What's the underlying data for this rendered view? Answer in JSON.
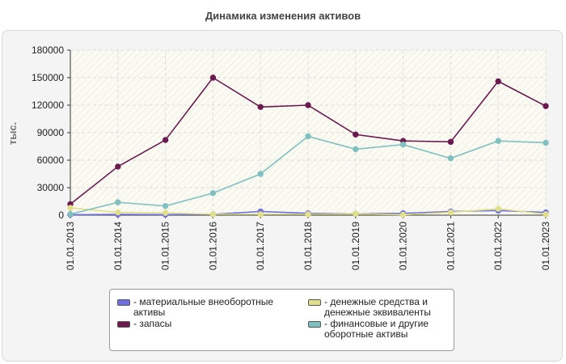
{
  "chart_data": {
    "type": "line",
    "title": "Динамика изменения активов",
    "ylabel": "тыс.",
    "xlabel": "",
    "ylim": [
      0,
      180000
    ],
    "yticks": [
      0,
      30000,
      60000,
      90000,
      120000,
      150000,
      180000
    ],
    "categories": [
      "01.01.2013",
      "01.01.2014",
      "01.01.2015",
      "01.01.2016",
      "01.01.2017",
      "01.01.2018",
      "01.01.2019",
      "01.01.2020",
      "01.01.2021",
      "01.01.2022",
      "01.01.2023"
    ],
    "grid": true,
    "legend_position": "bottom",
    "series": [
      {
        "name": "- материальные внеоборотные активы",
        "color": "#7070e0",
        "values": [
          500,
          800,
          600,
          1000,
          4000,
          2000,
          1500,
          2000,
          4000,
          5000,
          3000
        ]
      },
      {
        "name": "- запасы",
        "color": "#6b1a4f",
        "values": [
          12000,
          53000,
          82000,
          150000,
          118000,
          120000,
          88000,
          81000,
          80000,
          146000,
          119000
        ]
      },
      {
        "name": "- денежные средства и денежные эквиваленты",
        "color": "#e0e08a",
        "values": [
          8000,
          3000,
          2500,
          1000,
          1000,
          1000,
          1500,
          500,
          3000,
          7000,
          1000
        ]
      },
      {
        "name": "- финансовые и другие оборотные активы",
        "color": "#80c0c0",
        "values": [
          1000,
          14000,
          10000,
          24000,
          45000,
          86000,
          72000,
          77000,
          62000,
          81000,
          79000
        ]
      }
    ]
  }
}
